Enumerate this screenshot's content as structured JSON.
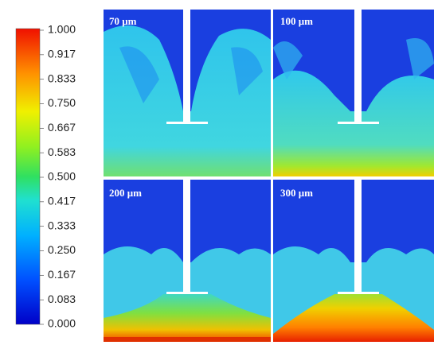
{
  "colorbar": {
    "ticks": [
      "1.000",
      "0.917",
      "0.833",
      "0.750",
      "0.667",
      "0.583",
      "0.500",
      "0.417",
      "0.333",
      "0.250",
      "0.167",
      "0.083",
      "0.000"
    ]
  },
  "panels": [
    {
      "label": "70 μm"
    },
    {
      "label": "100 μm"
    },
    {
      "label": "200 μm"
    },
    {
      "label": "300 μm"
    }
  ]
}
